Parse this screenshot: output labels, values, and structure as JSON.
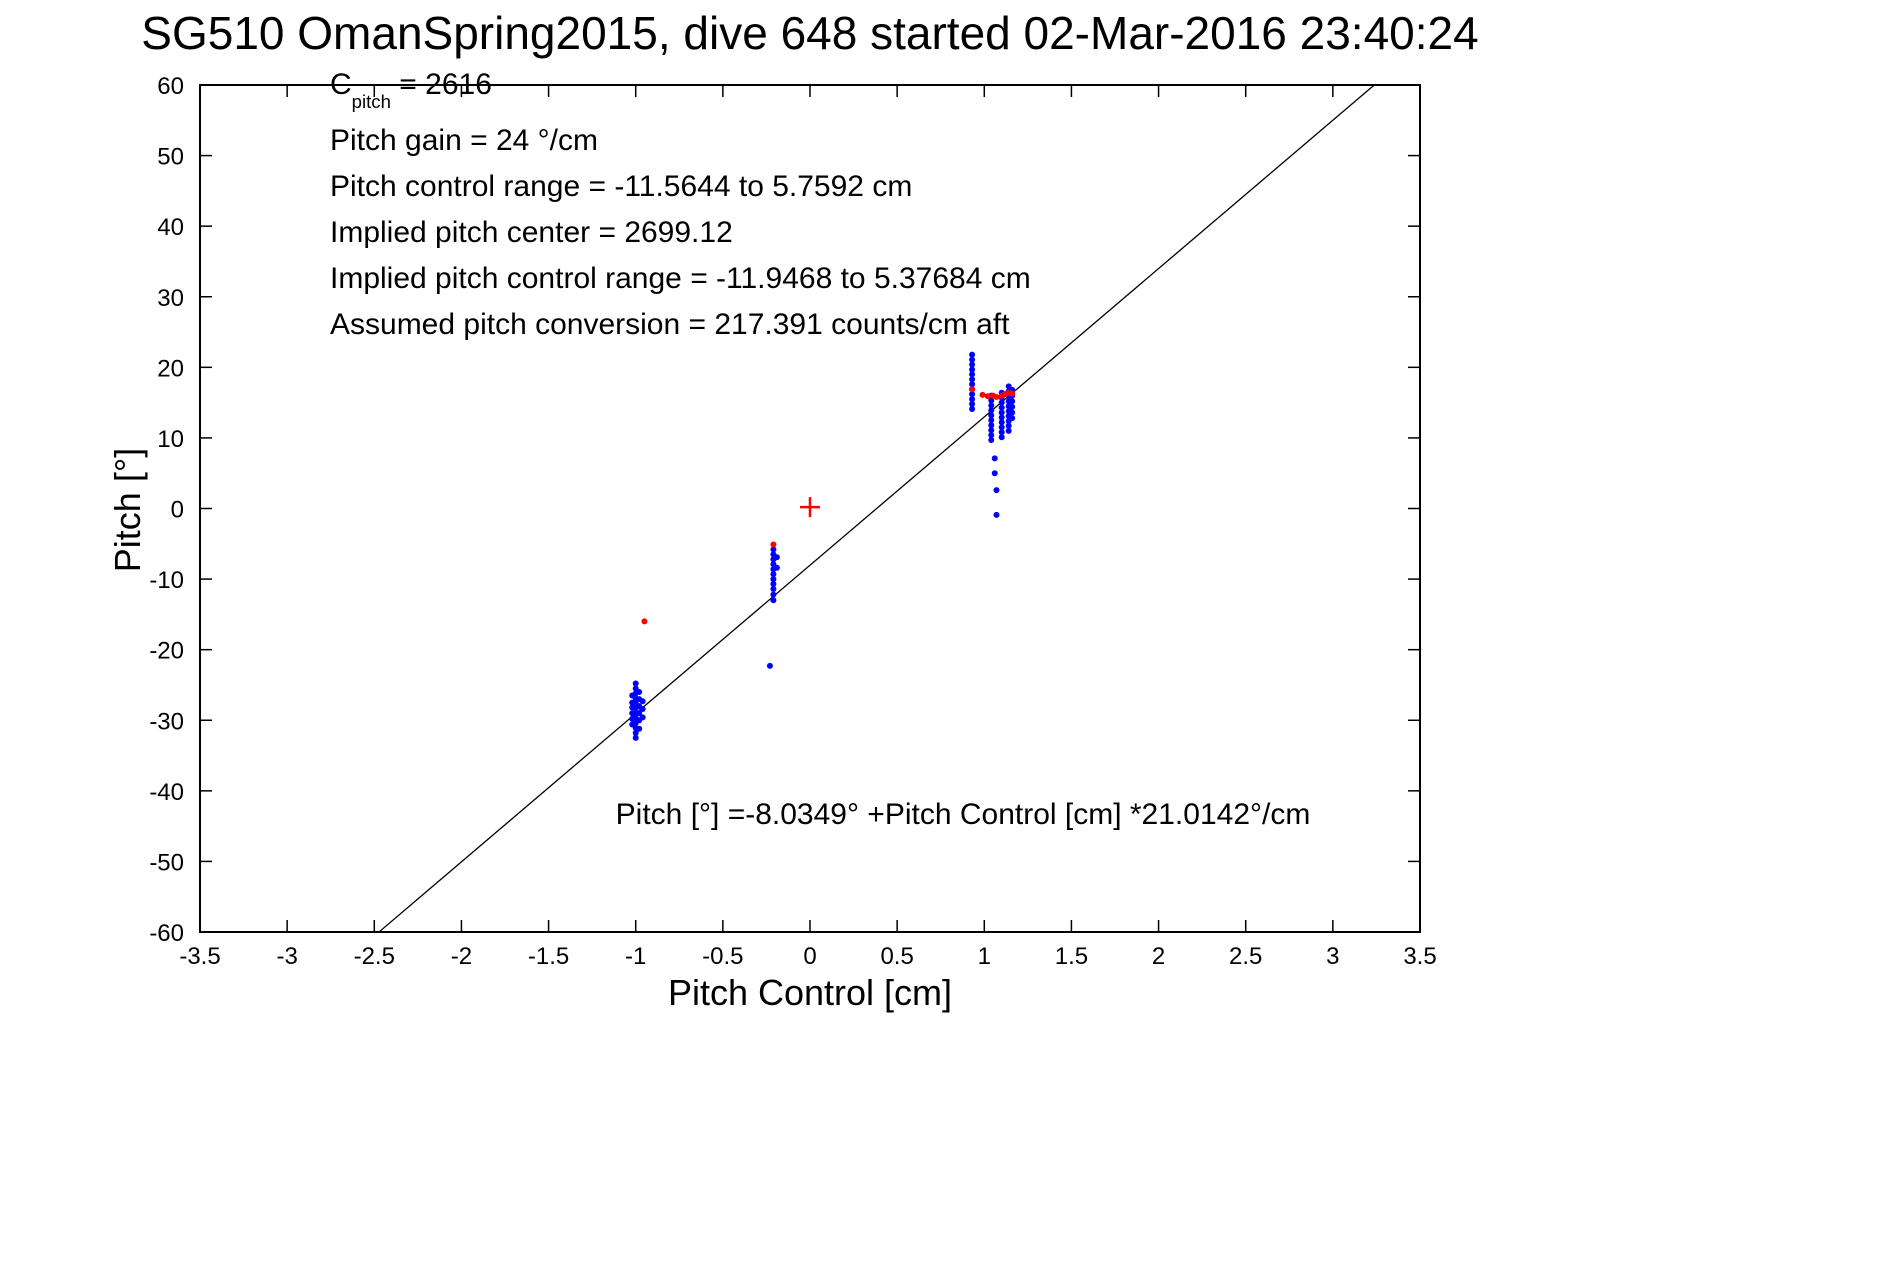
{
  "figure": {
    "title": "SG510 OmanSpring2015, dive 648 started 02-Mar-2016 23:40:24"
  },
  "annotations": {
    "c_base": "C",
    "c_sub": "pitch",
    "c_rest": " = 2616",
    "lines": [
      "Pitch gain = 24 °/cm",
      "Pitch control range = -11.5644 to 5.7592 cm",
      "Implied pitch center = 2699.12",
      "Implied pitch control range = -11.9468 to 5.37684 cm",
      "Assumed pitch conversion = 217.391 counts/cm aft"
    ],
    "equation": "Pitch [°] =-8.0349° +Pitch Control [cm] *21.0142°/cm"
  },
  "chart_data": {
    "type": "scatter",
    "title": "SG510 OmanSpring2015, dive 648 started 02-Mar-2016 23:40:24",
    "xlabel": "Pitch Control [cm]",
    "ylabel": "Pitch [°]",
    "xlim": [
      -3.5,
      3.5
    ],
    "ylim": [
      -60,
      60
    ],
    "xticks": [
      -3.5,
      -3,
      -2.5,
      -2,
      -1.5,
      -1,
      -0.5,
      0,
      0.5,
      1,
      1.5,
      2,
      2.5,
      3,
      3.5
    ],
    "yticks": [
      -60,
      -50,
      -40,
      -30,
      -20,
      -10,
      0,
      10,
      20,
      30,
      40,
      50,
      60
    ],
    "grid": false,
    "legend": "none",
    "fit_line": {
      "intercept": -8.0349,
      "slope": 21.0142,
      "color": "#000000"
    },
    "colors": {
      "axis": "#000000",
      "background": "#ffffff",
      "observed": "#0000ff",
      "flagged": "#ff0000"
    },
    "series": [
      {
        "name": "observed-pitch",
        "marker": "dot",
        "color": "#0000ff",
        "points": [
          [
            -1.02,
            -26.5
          ],
          [
            -1.02,
            -27.5
          ],
          [
            -1.02,
            -28.2
          ],
          [
            -1.02,
            -29.0
          ],
          [
            -1.02,
            -29.8
          ],
          [
            -1.02,
            -30.6
          ],
          [
            -1.0,
            -24.8
          ],
          [
            -1.0,
            -25.5
          ],
          [
            -1.0,
            -26.2
          ],
          [
            -1.0,
            -26.9
          ],
          [
            -1.0,
            -27.6
          ],
          [
            -1.0,
            -28.3
          ],
          [
            -1.0,
            -29.0
          ],
          [
            -1.0,
            -29.7
          ],
          [
            -1.0,
            -30.4
          ],
          [
            -1.0,
            -31.1
          ],
          [
            -1.0,
            -31.8
          ],
          [
            -1.0,
            -32.5
          ],
          [
            -0.98,
            -26.0
          ],
          [
            -0.98,
            -27.0
          ],
          [
            -0.98,
            -28.0
          ],
          [
            -0.98,
            -29.0
          ],
          [
            -0.98,
            -30.0
          ],
          [
            -0.98,
            -31.2
          ],
          [
            -0.96,
            -27.3
          ],
          [
            -0.96,
            -28.4
          ],
          [
            -0.96,
            -29.6
          ],
          [
            -0.23,
            -22.3
          ],
          [
            -0.21,
            -5.8
          ],
          [
            -0.21,
            -6.5
          ],
          [
            -0.21,
            -7.2
          ],
          [
            -0.21,
            -7.9
          ],
          [
            -0.21,
            -8.6
          ],
          [
            -0.21,
            -9.3
          ],
          [
            -0.21,
            -10.0
          ],
          [
            -0.21,
            -10.7
          ],
          [
            -0.21,
            -11.4
          ],
          [
            -0.21,
            -12.2
          ],
          [
            -0.21,
            -13.0
          ],
          [
            -0.19,
            -6.9
          ],
          [
            -0.19,
            -8.4
          ],
          [
            0.93,
            21.8
          ],
          [
            0.93,
            21.1
          ],
          [
            0.93,
            20.4
          ],
          [
            0.93,
            19.7
          ],
          [
            0.93,
            19.0
          ],
          [
            0.93,
            18.3
          ],
          [
            0.93,
            17.6
          ],
          [
            0.93,
            16.9
          ],
          [
            0.93,
            16.2
          ],
          [
            0.93,
            15.5
          ],
          [
            0.93,
            14.8
          ],
          [
            0.93,
            14.1
          ],
          [
            1.04,
            16.0
          ],
          [
            1.04,
            15.3
          ],
          [
            1.04,
            14.6
          ],
          [
            1.04,
            13.9
          ],
          [
            1.04,
            13.2
          ],
          [
            1.04,
            12.5
          ],
          [
            1.04,
            11.8
          ],
          [
            1.04,
            11.1
          ],
          [
            1.04,
            10.4
          ],
          [
            1.04,
            9.7
          ],
          [
            1.06,
            7.1
          ],
          [
            1.06,
            5.0
          ],
          [
            1.07,
            2.6
          ],
          [
            1.07,
            -0.9
          ],
          [
            1.1,
            16.4
          ],
          [
            1.1,
            15.7
          ],
          [
            1.1,
            15.0
          ],
          [
            1.1,
            14.3
          ],
          [
            1.1,
            13.6
          ],
          [
            1.1,
            12.9
          ],
          [
            1.1,
            12.2
          ],
          [
            1.1,
            11.5
          ],
          [
            1.1,
            10.8
          ],
          [
            1.1,
            10.1
          ],
          [
            1.14,
            17.3
          ],
          [
            1.14,
            16.6
          ],
          [
            1.14,
            15.9
          ],
          [
            1.14,
            15.2
          ],
          [
            1.14,
            14.5
          ],
          [
            1.14,
            13.8
          ],
          [
            1.14,
            13.1
          ],
          [
            1.14,
            12.4
          ],
          [
            1.14,
            11.7
          ],
          [
            1.14,
            11.0
          ],
          [
            1.16,
            16.8
          ],
          [
            1.16,
            16.0
          ],
          [
            1.16,
            15.2
          ],
          [
            1.16,
            14.4
          ],
          [
            1.16,
            13.6
          ],
          [
            1.16,
            12.8
          ]
        ]
      },
      {
        "name": "flagged-pitch",
        "marker": "dot",
        "color": "#ff0000",
        "points": [
          [
            -0.95,
            -16.0
          ],
          [
            -0.21,
            -5.1
          ],
          [
            0.93,
            16.9
          ],
          [
            0.99,
            16.1
          ],
          [
            1.02,
            15.9
          ],
          [
            1.05,
            16.0
          ],
          [
            1.07,
            15.8
          ],
          [
            1.1,
            16.0
          ],
          [
            1.12,
            16.2
          ],
          [
            1.14,
            16.4
          ],
          [
            1.16,
            16.3
          ]
        ]
      },
      {
        "name": "pitch-center",
        "marker": "plus",
        "color": "#ff0000",
        "points": [
          [
            0.0,
            0.2
          ]
        ]
      }
    ]
  }
}
